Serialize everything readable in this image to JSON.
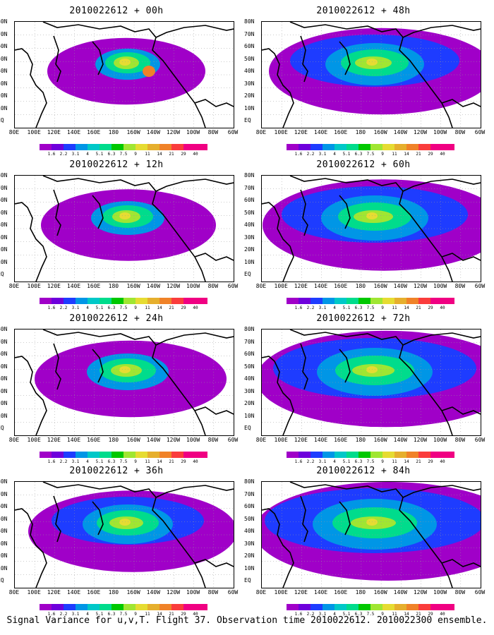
{
  "caption": "Signal Variance for u,v,T. Flight 37. Observation time 2010022612. 2010022300 ensemble.",
  "lat_labels": [
    "80N",
    "70N",
    "60N",
    "50N",
    "40N",
    "30N",
    "20N",
    "10N",
    "EQ"
  ],
  "lon_labels": [
    "80E",
    "100E",
    "120E",
    "140E",
    "160E",
    "180",
    "160W",
    "140W",
    "120W",
    "100W",
    "80W",
    "60W"
  ],
  "colorbar": {
    "labels": [
      "1.6",
      "2.2",
      "3.1",
      "4",
      "5.1",
      "6.3",
      "7.5",
      "9",
      "11",
      "14",
      "21",
      "29",
      "40"
    ],
    "colors": [
      "#a000c8",
      "#6e00dc",
      "#1e3cff",
      "#0096e6",
      "#00c8c8",
      "#00dc8c",
      "#00c800",
      "#a0e632",
      "#e6dc32",
      "#e6af2d",
      "#f08228",
      "#fa3c3c",
      "#f00082"
    ]
  },
  "panels": [
    {
      "id": "p00",
      "title": "2010022612 + 00h",
      "level": 1
    },
    {
      "id": "p48",
      "title": "2010022612 + 48h",
      "level": 5
    },
    {
      "id": "p12",
      "title": "2010022612 + 12h",
      "level": 2
    },
    {
      "id": "p60",
      "title": "2010022612 + 60h",
      "level": 6
    },
    {
      "id": "p24",
      "title": "2010022612 + 24h",
      "level": 3
    },
    {
      "id": "p72",
      "title": "2010022612 + 72h",
      "level": 7
    },
    {
      "id": "p36",
      "title": "2010022612 + 36h",
      "level": 4
    },
    {
      "id": "p84",
      "title": "2010022612 + 84h",
      "level": 8
    }
  ]
}
